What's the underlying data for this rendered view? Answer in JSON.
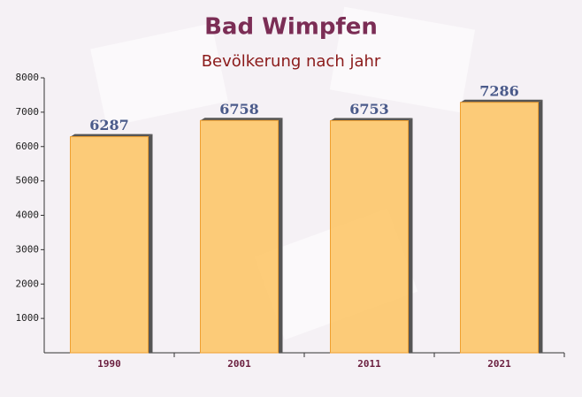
{
  "chart_data": {
    "type": "bar",
    "title": "Bad Wimpfen",
    "subtitle": "Bevölkerung nach jahr",
    "categories": [
      "1990",
      "2001",
      "2011",
      "2021"
    ],
    "values": [
      6287,
      6758,
      6753,
      7286
    ],
    "color": "#fdc76a",
    "ylim": [
      0,
      8000
    ],
    "yticks": [
      1000,
      2000,
      3000,
      4000,
      5000,
      6000,
      7000,
      8000
    ]
  }
}
